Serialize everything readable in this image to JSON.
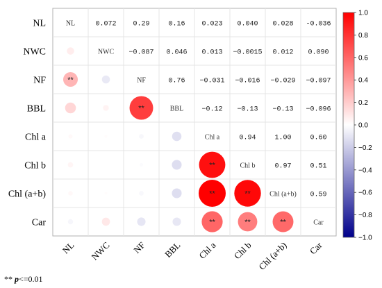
{
  "chart_data": {
    "type": "heatmap",
    "subtype": "correlation-matrix",
    "variables": [
      "NL",
      "NWC",
      "NF",
      "BBL",
      "Chl a",
      "Chl b",
      "Chl (a+b)",
      "Car"
    ],
    "upper_triangle_labels": [
      [
        null,
        "0.072",
        "0.29",
        "0.16",
        "0.023",
        "0.040",
        "0.028",
        "-0.036"
      ],
      [
        null,
        null,
        "−0.087",
        "0.046",
        "0.013",
        "−0.0015",
        "0.012",
        "0.090"
      ],
      [
        null,
        null,
        null,
        "0.76",
        "−0.031",
        "−0.016",
        "−0.029",
        "−0.097"
      ],
      [
        null,
        null,
        null,
        null,
        "−0.12",
        "−0.13",
        "−0.13",
        "−0.096"
      ],
      [
        null,
        null,
        null,
        null,
        null,
        "0.94",
        "1.00",
        "0.60"
      ],
      [
        null,
        null,
        null,
        null,
        null,
        null,
        "0.97",
        "0.51"
      ],
      [
        null,
        null,
        null,
        null,
        null,
        null,
        null,
        "0.59"
      ],
      [
        null,
        null,
        null,
        null,
        null,
        null,
        null,
        null
      ]
    ],
    "matrix": [
      [
        1.0,
        0.072,
        0.29,
        0.16,
        0.023,
        0.04,
        0.028,
        -0.036
      ],
      [
        0.072,
        1.0,
        -0.087,
        0.046,
        0.013,
        -0.0015,
        0.012,
        0.09
      ],
      [
        0.29,
        -0.087,
        1.0,
        0.76,
        -0.031,
        -0.016,
        -0.029,
        -0.097
      ],
      [
        0.16,
        0.046,
        0.76,
        1.0,
        -0.12,
        -0.13,
        -0.13,
        -0.096
      ],
      [
        0.023,
        0.013,
        -0.031,
        -0.12,
        1.0,
        0.94,
        1.0,
        0.6
      ],
      [
        0.04,
        -0.0015,
        -0.016,
        -0.13,
        0.94,
        1.0,
        0.97,
        0.51
      ],
      [
        0.028,
        0.012,
        -0.029,
        -0.13,
        1.0,
        0.97,
        1.0,
        0.59
      ],
      [
        -0.036,
        0.09,
        -0.097,
        -0.096,
        0.6,
        0.51,
        0.59,
        1.0
      ]
    ],
    "significance": [
      [
        null,
        null,
        null,
        null,
        null,
        null,
        null,
        null
      ],
      [
        null,
        null,
        null,
        null,
        null,
        null,
        null,
        null
      ],
      [
        "**",
        null,
        null,
        null,
        null,
        null,
        null,
        null
      ],
      [
        null,
        null,
        "**",
        null,
        null,
        null,
        null,
        null
      ],
      [
        null,
        null,
        null,
        null,
        null,
        null,
        null,
        null
      ],
      [
        null,
        null,
        null,
        null,
        "**",
        null,
        null,
        null
      ],
      [
        null,
        null,
        null,
        null,
        "**",
        "**",
        null,
        null
      ],
      [
        null,
        null,
        null,
        null,
        "**",
        "**",
        "**",
        null
      ]
    ],
    "colorbar": {
      "range": [
        -1.0,
        1.0
      ],
      "ticks": [
        "1.0",
        "0.8",
        "0.6",
        "0.4",
        "0.2",
        "0.0",
        "−0.2",
        "−0.4",
        "−0.6",
        "−0.8",
        "−1.0"
      ],
      "tick_values": [
        1.0,
        0.8,
        0.6,
        0.4,
        0.2,
        0.0,
        -0.2,
        -0.4,
        -0.6,
        -0.8,
        -1.0
      ],
      "colors": {
        "positive": "#ff0000",
        "neutral": "#ffffff",
        "negative": "#00008b"
      }
    },
    "lower_triangle_mark": "circle",
    "grid": true
  },
  "footnote": {
    "stars": "**",
    "p_symbol": "p",
    "threshold": "<=0.01"
  }
}
